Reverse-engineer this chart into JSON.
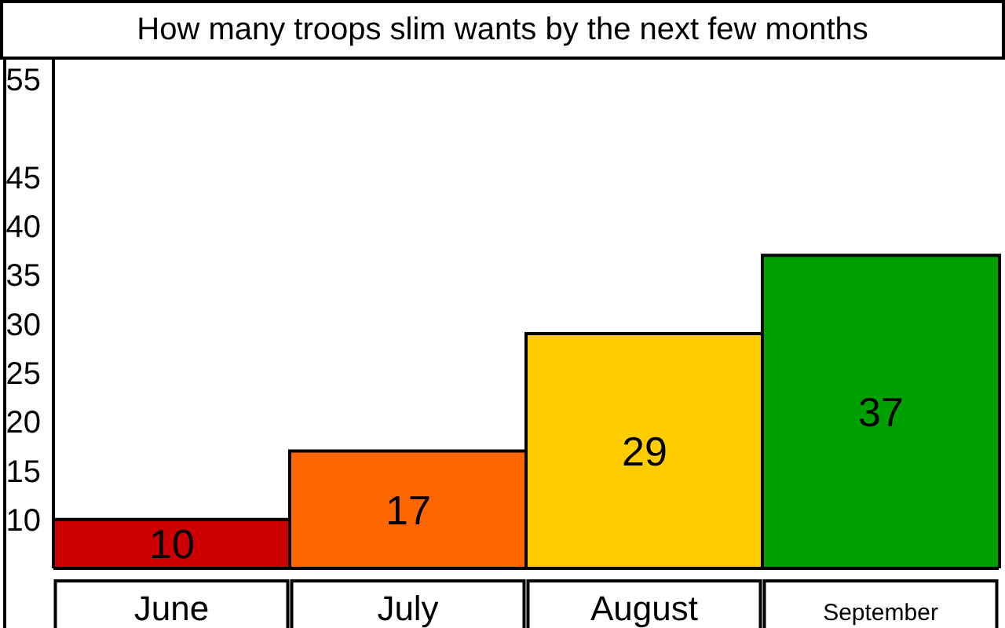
{
  "chart_data": {
    "type": "bar",
    "title": "How many troops slim wants by the next few months",
    "categories": [
      "June",
      "July",
      "August",
      "September"
    ],
    "values": [
      10,
      17,
      29,
      37
    ],
    "colors": [
      "#cc0000",
      "#ff6600",
      "#ffcc00",
      "#00a000"
    ],
    "ylim": [
      5,
      57
    ],
    "yticks": [
      10,
      15,
      20,
      25,
      30,
      35,
      40,
      45,
      55
    ],
    "data_labels": true
  }
}
